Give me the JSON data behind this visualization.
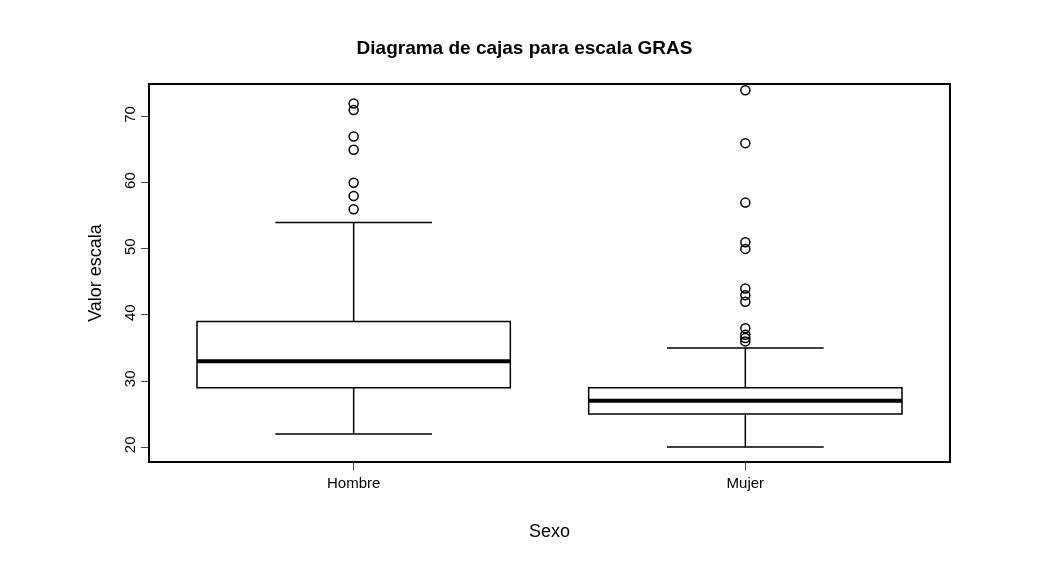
{
  "chart_data": {
    "type": "box",
    "title": "Diagrama de cajas para escala GRAS",
    "xlabel": "Sexo",
    "ylabel": "Valor escala",
    "categories": [
      "Hombre",
      "Mujer"
    ],
    "boxes": [
      {
        "low": 22,
        "q1": 29,
        "median": 33,
        "q3": 39,
        "high": 54,
        "outliers": [
          56,
          58,
          60,
          65,
          67,
          71,
          72
        ]
      },
      {
        "low": 20,
        "q1": 25,
        "median": 27,
        "q3": 29,
        "high": 35,
        "outliers": [
          36,
          36.5,
          37,
          38,
          42,
          43,
          44,
          50,
          51,
          57,
          66,
          74
        ]
      }
    ],
    "color": "#000000",
    "marker": "circle",
    "ylim": [
      17.9,
      74.8
    ],
    "yticks": [
      20,
      30,
      40,
      50,
      60,
      70
    ]
  }
}
